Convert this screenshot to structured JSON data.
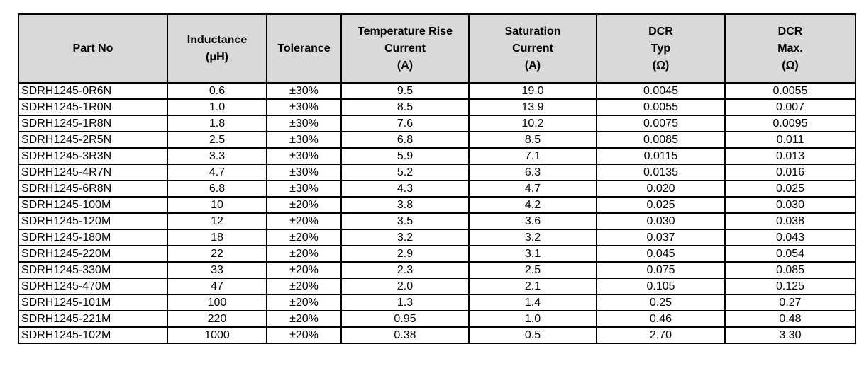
{
  "table": {
    "headers": [
      {
        "key": "part_no",
        "lines": [
          "Part No"
        ]
      },
      {
        "key": "inductance",
        "lines": [
          "Inductance",
          "(μH)"
        ]
      },
      {
        "key": "tolerance",
        "lines": [
          "Tolerance"
        ]
      },
      {
        "key": "temp_rise_current",
        "lines": [
          "Temperature Rise",
          "Current",
          "(A)"
        ]
      },
      {
        "key": "saturation_current",
        "lines": [
          "Saturation",
          "Current",
          "(A)"
        ]
      },
      {
        "key": "dcr_typ",
        "lines": [
          "DCR",
          "Typ",
          "(Ω)"
        ]
      },
      {
        "key": "dcr_max",
        "lines": [
          "DCR",
          "Max.",
          "(Ω)"
        ]
      }
    ],
    "rows": [
      [
        "SDRH1245-0R6N",
        "0.6",
        "±30%",
        "9.5",
        "19.0",
        "0.0045",
        "0.0055"
      ],
      [
        "SDRH1245-1R0N",
        "1.0",
        "±30%",
        "8.5",
        "13.9",
        "0.0055",
        "0.007"
      ],
      [
        "SDRH1245-1R8N",
        "1.8",
        "±30%",
        "7.6",
        "10.2",
        "0.0075",
        "0.0095"
      ],
      [
        "SDRH1245-2R5N",
        "2.5",
        "±30%",
        "6.8",
        "8.5",
        "0.0085",
        "0.011"
      ],
      [
        "SDRH1245-3R3N",
        "3.3",
        "±30%",
        "5.9",
        "7.1",
        "0.0115",
        "0.013"
      ],
      [
        "SDRH1245-4R7N",
        "4.7",
        "±30%",
        "5.2",
        "6.3",
        "0.0135",
        "0.016"
      ],
      [
        "SDRH1245-6R8N",
        "6.8",
        "±30%",
        "4.3",
        "4.7",
        "0.020",
        "0.025"
      ],
      [
        "SDRH1245-100M",
        "10",
        "±20%",
        "3.8",
        "4.2",
        "0.025",
        "0.030"
      ],
      [
        "SDRH1245-120M",
        "12",
        "±20%",
        "3.5",
        "3.6",
        "0.030",
        "0.038"
      ],
      [
        "SDRH1245-180M",
        "18",
        "±20%",
        "3.2",
        "3.2",
        "0.037",
        "0.043"
      ],
      [
        "SDRH1245-220M",
        "22",
        "±20%",
        "2.9",
        "3.1",
        "0.045",
        "0.054"
      ],
      [
        "SDRH1245-330M",
        "33",
        "±20%",
        "2.3",
        "2.5",
        "0.075",
        "0.085"
      ],
      [
        "SDRH1245-470M",
        "47",
        "±20%",
        "2.0",
        "2.1",
        "0.105",
        "0.125"
      ],
      [
        "SDRH1245-101M",
        "100",
        "±20%",
        "1.3",
        "1.4",
        "0.25",
        "0.27"
      ],
      [
        "SDRH1245-221M",
        "220",
        "±20%",
        "0.95",
        "1.0",
        "0.46",
        "0.48"
      ],
      [
        "SDRH1245-102M",
        "1000",
        "±20%",
        "0.38",
        "0.5",
        "2.70",
        "3.30"
      ]
    ]
  },
  "style": {
    "header_background": "#d9d9d9",
    "border_color": "#000000",
    "text_color": "#000000"
  }
}
